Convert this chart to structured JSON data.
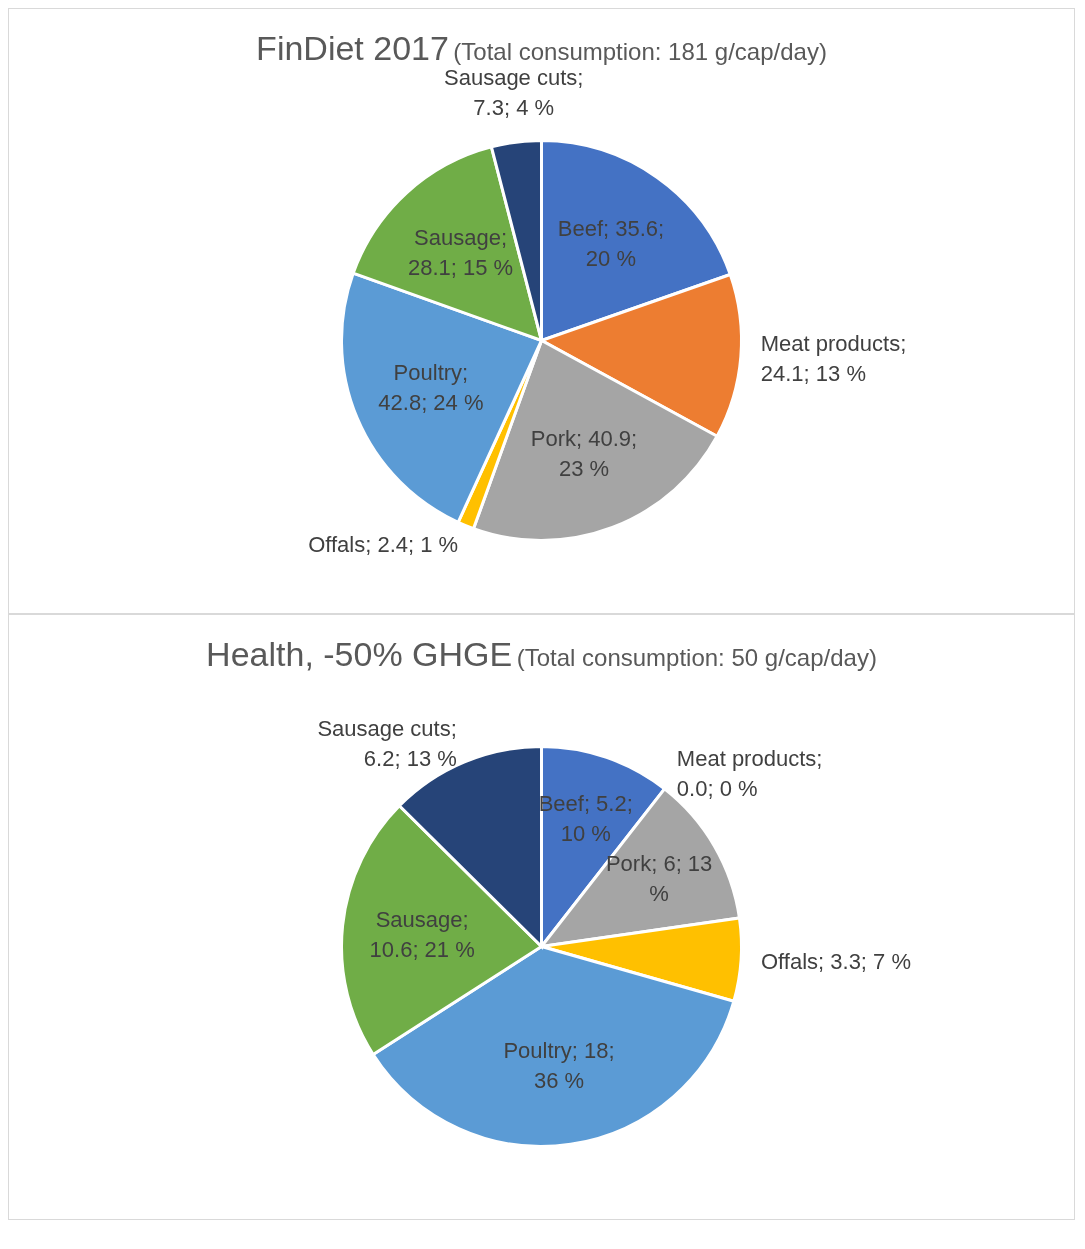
{
  "chart_data": [
    {
      "type": "pie",
      "title": "FinDiet 2017",
      "subtitle": "(Total consumption: 181 g/cap/day)",
      "categories": [
        "Beef",
        "Meat products",
        "Pork",
        "Offals",
        "Poultry",
        "Sausage",
        "Sausage cuts"
      ],
      "values": [
        35.6,
        24.1,
        40.9,
        2.4,
        42.8,
        28.1,
        7.3
      ],
      "colors": [
        "#4472c4",
        "#ed7d31",
        "#a5a5a5",
        "#ffc000",
        "#5b9bd5",
        "#70ad47",
        "#264478"
      ],
      "value_labels": [
        "; 35.6; 20 %",
        "; 24.1; 13 %",
        "; 40.9; 23 %",
        "; 2.4; 1 %",
        "; 42.8; 24 %",
        "; 28.1; 15 %",
        "; 7.3; 4 %"
      ],
      "legend": false
    },
    {
      "type": "pie",
      "title": "Health, -50% GHGE",
      "subtitle": "(Total consumption: 50 g/cap/day)",
      "categories": [
        "Beef",
        "Meat products",
        "Pork",
        "Offals",
        "Poultry",
        "Sausage",
        "Sausage cuts"
      ],
      "values": [
        5.2,
        0.0,
        6,
        3.3,
        18,
        10.6,
        6.2
      ],
      "colors": [
        "#4472c4",
        "#ed7d31",
        "#a5a5a5",
        "#ffc000",
        "#5b9bd5",
        "#70ad47",
        "#264478"
      ],
      "value_labels": [
        "; 5.2; 10 %",
        "; 0.0; 0 %",
        "; 6; 13 %",
        "; 3.3; 7 %",
        "; 18; 36 %",
        "; 10.6; 21 %",
        "; 6.2; 13 %"
      ],
      "legend": false
    }
  ]
}
